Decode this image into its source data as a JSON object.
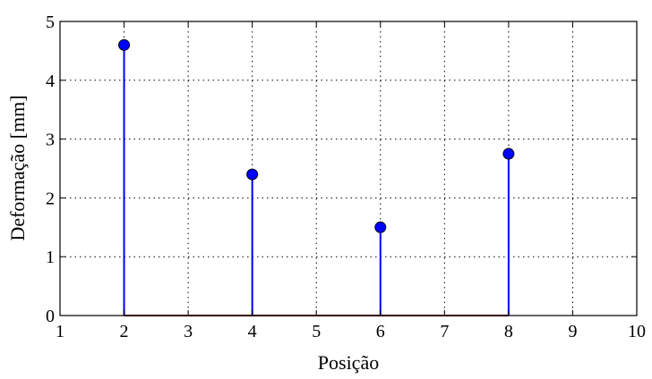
{
  "chart_data": {
    "type": "stem",
    "xlabel": "Posição",
    "ylabel": "Deformação [mm]",
    "xlim": [
      1,
      10
    ],
    "ylim": [
      0,
      5
    ],
    "xticks": [
      "1",
      "2",
      "3",
      "4",
      "5",
      "6",
      "7",
      "8",
      "9",
      "10"
    ],
    "yticks": [
      "0",
      "1",
      "2",
      "3",
      "4",
      "5"
    ],
    "grid": true,
    "baseline_color": "#8b0000",
    "stem_color": "#0000ff",
    "marker_fill": "#0000ff",
    "points": [
      {
        "x": 2,
        "y": 4.6
      },
      {
        "x": 4,
        "y": 2.4
      },
      {
        "x": 6,
        "y": 1.5
      },
      {
        "x": 8,
        "y": 2.75
      }
    ]
  }
}
